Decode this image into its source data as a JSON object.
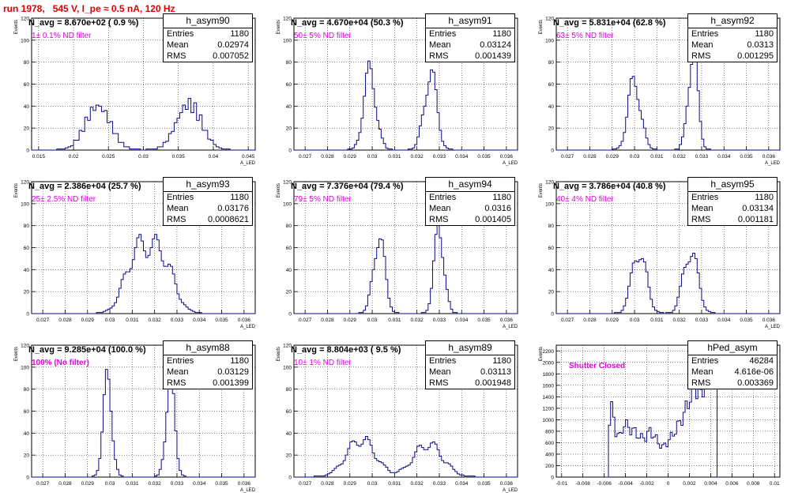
{
  "page": {
    "title": "run 1978,   545 V, I_pe ≈ 0.5 nA, 120 Hz"
  },
  "chart_data": [
    {
      "type": "histogram",
      "name": "h_asym90",
      "stats": {
        "entries": "1180",
        "mean": "0.02974",
        "rms": "0.007052"
      },
      "navg_text": "N_avg = 8.670e+02 ( 0.9 %)",
      "filter_text": "1± 0.1% ND filter",
      "ylabel": "Events",
      "xlabel": "A_LED",
      "ylim": [
        0,
        120
      ],
      "yticks": [
        0,
        20,
        40,
        60,
        80,
        100,
        120
      ],
      "xlim": [
        0.014,
        0.046
      ],
      "xticks": [
        0.015,
        0.02,
        0.025,
        0.03,
        0.035,
        0.04,
        0.045
      ],
      "xtick_labels": [
        "0.015",
        "0.02",
        "0.025",
        "0.03",
        "0.035",
        "0.04",
        "0.045"
      ],
      "peaks": [
        {
          "mu": 0.0235,
          "sigma": 0.0018,
          "amp": 40
        },
        {
          "mu": 0.0365,
          "sigma": 0.0018,
          "amp": 42
        }
      ],
      "binw": 0.0004
    },
    {
      "type": "histogram",
      "name": "h_asym91",
      "stats": {
        "entries": "1180",
        "mean": "0.03124",
        "rms": "0.001439"
      },
      "navg_text": "N_avg = 4.670e+04 (50.3 %)",
      "filter_text": "50± 5% ND filter",
      "ylabel": "Events",
      "xlabel": "A_LED",
      "ylim": [
        0,
        120
      ],
      "yticks": [
        0,
        20,
        40,
        60,
        80,
        100,
        120
      ],
      "xlim": [
        0.0265,
        0.0365
      ],
      "xticks": [
        0.027,
        0.028,
        0.029,
        0.03,
        0.031,
        0.032,
        0.033,
        0.034,
        0.035,
        0.036
      ],
      "xtick_labels": [
        "0.027",
        "0.028",
        "0.029",
        "0.03",
        "0.031",
        "0.032",
        "0.033",
        "0.034",
        "0.035",
        "0.036"
      ],
      "peaks": [
        {
          "mu": 0.0299,
          "sigma": 0.00028,
          "amp": 70
        },
        {
          "mu": 0.0326,
          "sigma": 0.00028,
          "amp": 70
        }
      ],
      "binw": 0.0001
    },
    {
      "type": "histogram",
      "name": "h_asym92",
      "stats": {
        "entries": "1180",
        "mean": "0.0313",
        "rms": "0.001295"
      },
      "navg_text": "N_avg = 5.831e+04 (62.8 %)",
      "filter_text": "63± 5% ND filter",
      "ylabel": "Events",
      "xlabel": "A_LED",
      "ylim": [
        0,
        120
      ],
      "yticks": [
        0,
        20,
        40,
        60,
        80,
        100,
        120
      ],
      "xlim": [
        0.0265,
        0.0365
      ],
      "xticks": [
        0.027,
        0.028,
        0.029,
        0.03,
        0.031,
        0.032,
        0.033,
        0.034,
        0.035,
        0.036
      ],
      "xtick_labels": [
        "0.027",
        "0.028",
        "0.029",
        "0.03",
        "0.031",
        "0.032",
        "0.033",
        "0.034",
        "0.035",
        "0.036"
      ],
      "peaks": [
        {
          "mu": 0.03,
          "sigma": 0.00028,
          "amp": 64
        },
        {
          "mu": 0.0326,
          "sigma": 0.00022,
          "amp": 88
        }
      ],
      "binw": 0.0001
    },
    {
      "type": "histogram",
      "name": "h_asym93",
      "stats": {
        "entries": "1180",
        "mean": "0.03176",
        "rms": "0.0008621"
      },
      "navg_text": "N_avg = 2.386e+04 (25.7 %)",
      "filter_text": "25± 2.5% ND filter",
      "ylabel": "Events",
      "xlabel": "A_LED",
      "ylim": [
        0,
        120
      ],
      "yticks": [
        0,
        20,
        40,
        60,
        80,
        100,
        120
      ],
      "xlim": [
        0.0265,
        0.0365
      ],
      "xticks": [
        0.027,
        0.028,
        0.029,
        0.03,
        0.031,
        0.032,
        0.033,
        0.034,
        0.035,
        0.036
      ],
      "xtick_labels": [
        "0.027",
        "0.028",
        "0.029",
        "0.03",
        "0.031",
        "0.032",
        "0.033",
        "0.034",
        "0.035",
        "0.036"
      ],
      "peaks": [
        {
          "mu": 0.0312,
          "sigma": 0.00055,
          "amp": 52
        },
        {
          "mu": 0.0323,
          "sigma": 0.00055,
          "amp": 50
        }
      ],
      "binw": 0.0001
    },
    {
      "type": "histogram",
      "name": "h_asym94",
      "stats": {
        "entries": "1180",
        "mean": "0.0316",
        "rms": "0.001405"
      },
      "navg_text": "N_avg = 7.376e+04 (79.4 %)",
      "filter_text": "79± 5% ND filter",
      "ylabel": "Events",
      "xlabel": "A_LED",
      "ylim": [
        0,
        120
      ],
      "yticks": [
        0,
        20,
        40,
        60,
        80,
        100,
        120
      ],
      "xlim": [
        0.0265,
        0.0365
      ],
      "xticks": [
        0.027,
        0.028,
        0.029,
        0.03,
        0.031,
        0.032,
        0.033,
        0.034,
        0.035,
        0.036
      ],
      "xtick_labels": [
        "0.027",
        "0.028",
        "0.029",
        "0.03",
        "0.031",
        "0.032",
        "0.033",
        "0.034",
        "0.035",
        "0.036"
      ],
      "peaks": [
        {
          "mu": 0.0303,
          "sigma": 0.00025,
          "amp": 72
        },
        {
          "mu": 0.033,
          "sigma": 0.00022,
          "amp": 78
        }
      ],
      "binw": 0.0001
    },
    {
      "type": "histogram",
      "name": "h_asym95",
      "stats": {
        "entries": "1180",
        "mean": "0.03134",
        "rms": "0.001181"
      },
      "navg_text": "N_avg = 3.786e+04 (40.8 %)",
      "filter_text": "40± 4% ND filter",
      "ylabel": "Events",
      "xlabel": "A_LED",
      "ylim": [
        0,
        120
      ],
      "yticks": [
        0,
        20,
        40,
        60,
        80,
        100,
        120
      ],
      "xlim": [
        0.0265,
        0.0365
      ],
      "xticks": [
        0.027,
        0.028,
        0.029,
        0.03,
        0.031,
        0.032,
        0.033,
        0.034,
        0.035,
        0.036
      ],
      "xtick_labels": [
        "0.027",
        "0.028",
        "0.029",
        "0.03",
        "0.031",
        "0.032",
        "0.033",
        "0.034",
        "0.035",
        "0.036"
      ],
      "peaks": [
        {
          "mu": 0.0302,
          "sigma": 0.00032,
          "amp": 58
        },
        {
          "mu": 0.0325,
          "sigma": 0.00032,
          "amp": 58
        }
      ],
      "binw": 0.0001
    },
    {
      "type": "histogram",
      "name": "h_asym88",
      "stats": {
        "entries": "1180",
        "mean": "0.03129",
        "rms": "0.001399"
      },
      "navg_text": "N_avg = 9.285e+04 (100.0 %)",
      "filter_text": "100% (No filter)",
      "ylabel": "Events",
      "xlabel": "A_LED",
      "ylim": [
        0,
        120
      ],
      "yticks": [
        0,
        20,
        40,
        60,
        80,
        100,
        120
      ],
      "xlim": [
        0.0265,
        0.0365
      ],
      "xticks": [
        0.027,
        0.028,
        0.029,
        0.03,
        0.031,
        0.032,
        0.033,
        0.034,
        0.035,
        0.036
      ],
      "xtick_labels": [
        "0.027",
        "0.028",
        "0.029",
        "0.03",
        "0.031",
        "0.032",
        "0.033",
        "0.034",
        "0.035",
        "0.036"
      ],
      "peaks": [
        {
          "mu": 0.0299,
          "sigma": 0.0002,
          "amp": 86
        },
        {
          "mu": 0.0327,
          "sigma": 0.0002,
          "amp": 86
        }
      ],
      "binw": 0.0001
    },
    {
      "type": "histogram",
      "name": "h_asym89",
      "stats": {
        "entries": "1180",
        "mean": "0.03113",
        "rms": "0.001948"
      },
      "navg_text": "N_avg = 8.804e+03 ( 9.5 %)",
      "filter_text": "10± 1% ND filter",
      "ylabel": "Events",
      "xlabel": "A_LED",
      "ylim": [
        0,
        120
      ],
      "yticks": [
        0,
        20,
        40,
        60,
        80,
        100,
        120
      ],
      "xlim": [
        0.0265,
        0.0365
      ],
      "xticks": [
        0.027,
        0.028,
        0.029,
        0.03,
        0.031,
        0.032,
        0.033,
        0.034,
        0.035,
        0.036
      ],
      "xtick_labels": [
        "0.027",
        "0.028",
        "0.029",
        "0.03",
        "0.031",
        "0.032",
        "0.033",
        "0.034",
        "0.035",
        "0.036"
      ],
      "peaks": [
        {
          "mu": 0.0295,
          "sigma": 0.00065,
          "amp": 34
        },
        {
          "mu": 0.0325,
          "sigma": 0.00065,
          "amp": 30
        }
      ],
      "binw": 0.0001
    },
    {
      "type": "histogram",
      "name": "hPed_asym",
      "stats": {
        "entries": "46284",
        "mean": "4.616e-06",
        "rms": "0.003369"
      },
      "navg_text": "",
      "filter_text": "Shutter Closed",
      "ylabel": "Events",
      "xlabel": "",
      "ylim": [
        0,
        2300
      ],
      "yticks": [
        0,
        200,
        400,
        600,
        800,
        1000,
        1200,
        1400,
        1600,
        1800,
        2000,
        2200
      ],
      "xlim": [
        -0.0105,
        0.0105
      ],
      "xticks": [
        -0.01,
        -0.008,
        -0.006,
        -0.004,
        -0.002,
        0,
        0.002,
        0.004,
        0.006,
        0.008,
        0.01
      ],
      "xtick_labels": [
        "-0.01",
        "-0.008",
        "-0.006",
        "-0.004",
        "-0.002",
        "0",
        "0.002",
        "0.004",
        "0.006",
        "0.008",
        "0.01"
      ],
      "ped_profile": [
        [
          -0.0058,
          0
        ],
        [
          -0.0057,
          900
        ],
        [
          -0.0054,
          1200
        ],
        [
          -0.0052,
          1000
        ],
        [
          -0.005,
          800
        ],
        [
          -0.0046,
          700
        ],
        [
          -0.0042,
          950
        ],
        [
          -0.0038,
          850
        ],
        [
          -0.0034,
          820
        ],
        [
          -0.003,
          750
        ],
        [
          -0.0026,
          680
        ],
        [
          -0.0022,
          700
        ],
        [
          -0.0018,
          800
        ],
        [
          -0.0014,
          720
        ],
        [
          -0.001,
          600
        ],
        [
          -0.0006,
          520
        ],
        [
          -0.0002,
          600
        ],
        [
          0.0002,
          700
        ],
        [
          0.0006,
          820
        ],
        [
          0.001,
          950
        ],
        [
          0.0014,
          1100
        ],
        [
          0.0018,
          1300
        ],
        [
          0.0022,
          1500
        ],
        [
          0.0026,
          1550
        ],
        [
          0.003,
          1400
        ],
        [
          0.0034,
          1700
        ],
        [
          0.0038,
          2000
        ],
        [
          0.0042,
          2200
        ],
        [
          0.0044,
          2100
        ],
        [
          0.0046,
          0
        ]
      ],
      "binw": 0.0002
    }
  ]
}
